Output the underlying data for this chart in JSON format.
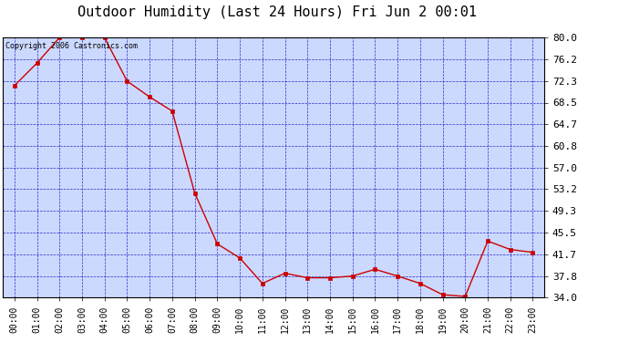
{
  "title": "Outdoor Humidity (Last 24 Hours) Fri Jun 2 00:01",
  "copyright_text": "Copyright 2006 Castronics.com",
  "x_labels": [
    "00:00",
    "01:00",
    "02:00",
    "03:00",
    "04:00",
    "05:00",
    "06:00",
    "07:00",
    "08:00",
    "09:00",
    "10:00",
    "11:00",
    "12:00",
    "13:00",
    "14:00",
    "15:00",
    "16:00",
    "17:00",
    "18:00",
    "19:00",
    "20:00",
    "21:00",
    "22:00",
    "23:00"
  ],
  "x_values": [
    0,
    1,
    2,
    3,
    4,
    5,
    6,
    7,
    8,
    9,
    10,
    11,
    12,
    13,
    14,
    15,
    16,
    17,
    18,
    19,
    20,
    21,
    22,
    23
  ],
  "y_values": [
    71.5,
    75.5,
    80.0,
    80.0,
    80.0,
    72.3,
    69.5,
    67.0,
    52.5,
    43.5,
    41.0,
    36.5,
    38.3,
    37.5,
    37.5,
    37.8,
    39.0,
    37.8,
    36.5,
    34.5,
    34.2,
    44.0,
    42.5,
    42.0
  ],
  "y_ticks": [
    34.0,
    37.8,
    41.7,
    45.5,
    49.3,
    53.2,
    57.0,
    60.8,
    64.7,
    68.5,
    72.3,
    76.2,
    80.0
  ],
  "y_min": 34.0,
  "y_max": 80.0,
  "line_color": "#cc0000",
  "marker_color": "#cc0000",
  "plot_bg_color": "#ccd9ff",
  "outer_bg_color": "#ffffff",
  "grid_color": "#0000bb",
  "title_color": "#000000",
  "copyright_color": "#000000",
  "title_fontsize": 11,
  "copyright_fontsize": 6,
  "tick_fontsize": 8
}
